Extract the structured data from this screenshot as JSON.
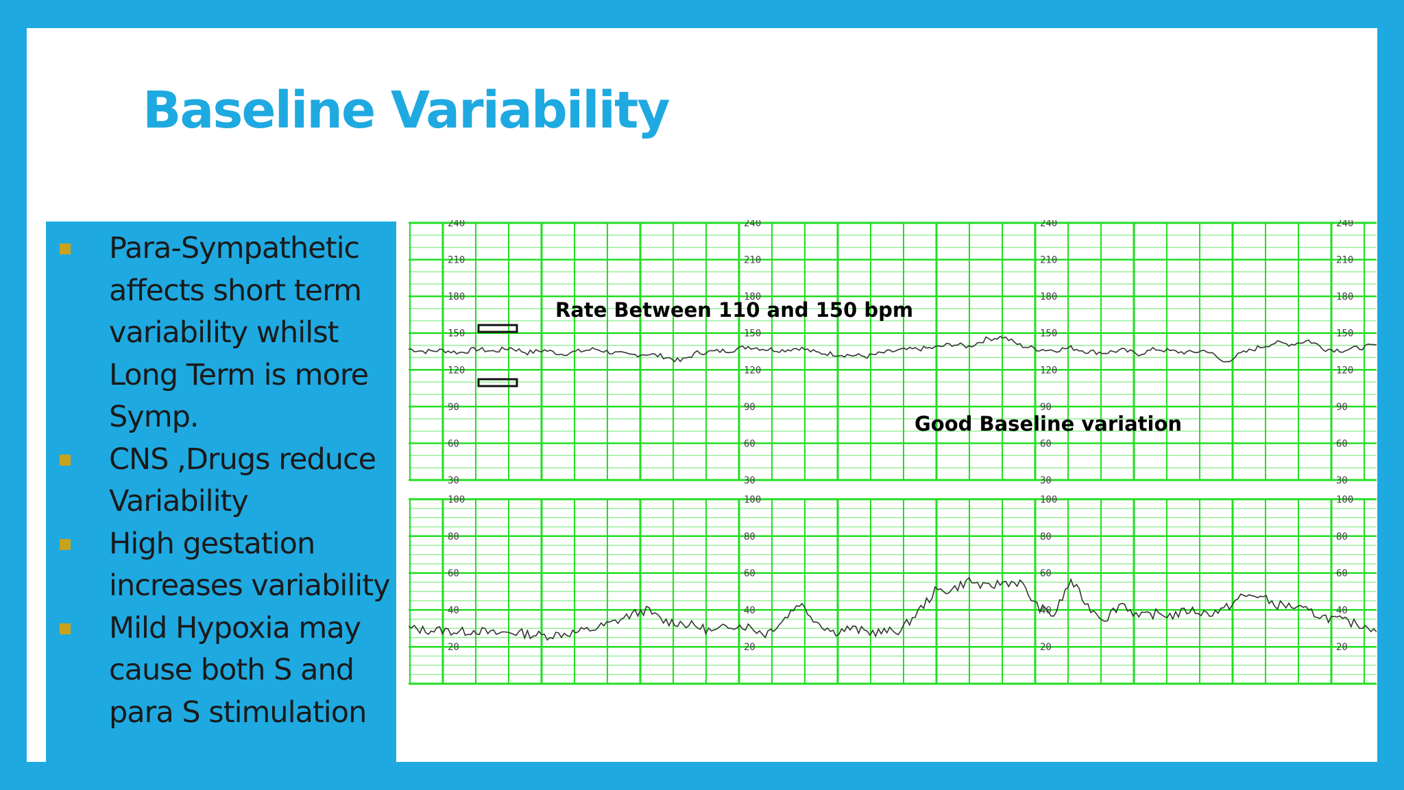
{
  "slide": {
    "title": "Baseline Variability",
    "bullets": [
      {
        "text": "Para-Sympathetic affects short term variability whilst Long Term is more Symp."
      },
      {
        "text": "CNS ,Drugs reduce Variability"
      },
      {
        "text": "High gestation increases variability"
      },
      {
        "text": "Mild Hypoxia may cause both S and para S stimulation"
      }
    ]
  },
  "colors": {
    "frame": "#1fa9e1",
    "title": "#1fa9e1",
    "bullet_marker": "#c9a21b",
    "grid_major": "#22dd22",
    "grid_minor": "#99ee99",
    "trace": "#333333"
  },
  "ctg": {
    "annotations": {
      "rate": "Rate Between 110 and 150 bpm",
      "baseline": "Good Baseline variation"
    },
    "fhr_scale": [
      "240",
      "210",
      "180",
      "150",
      "120",
      "90",
      "60",
      "30"
    ],
    "uc_scale": [
      "100",
      "80",
      "60",
      "40",
      "20"
    ]
  },
  "chart_data": [
    {
      "type": "line",
      "title": "",
      "xlabel": "",
      "ylabel": "",
      "ylim": [
        30,
        240
      ],
      "yticks": [
        240,
        210,
        180,
        150,
        120,
        90,
        60,
        30
      ],
      "series": [
        {
          "values": [
            137,
            135,
            136,
            134,
            137,
            135,
            138,
            134,
            136,
            133,
            135,
            137,
            134,
            132,
            133,
            131,
            127,
            134,
            135,
            136,
            139,
            137,
            136,
            138,
            134,
            133,
            132,
            131,
            134,
            136,
            137,
            138,
            141,
            139,
            145,
            147,
            140,
            137,
            136,
            138,
            135,
            134,
            136,
            133,
            137,
            135,
            134,
            136,
            126,
            133,
            138,
            142,
            141,
            144,
            137,
            136,
            138,
            140
          ]
        }
      ]
    },
    {
      "type": "line",
      "title": "",
      "xlabel": "",
      "ylabel": "",
      "ylim": [
        0,
        100
      ],
      "yticks": [
        100,
        80,
        60,
        40,
        20
      ],
      "series": [
        {
          "values": [
            30,
            29,
            29,
            28,
            29,
            27,
            28,
            27,
            26,
            27,
            28,
            30,
            33,
            37,
            40,
            34,
            33,
            31,
            28,
            32,
            31,
            27,
            34,
            44,
            34,
            28,
            30,
            28,
            28,
            29,
            39,
            50,
            51,
            56,
            52,
            55,
            55,
            42,
            37,
            56,
            42,
            35,
            44,
            36,
            38,
            37,
            40,
            38,
            40,
            47,
            48,
            43,
            42,
            39,
            36,
            34,
            32,
            30
          ]
        }
      ]
    }
  ]
}
